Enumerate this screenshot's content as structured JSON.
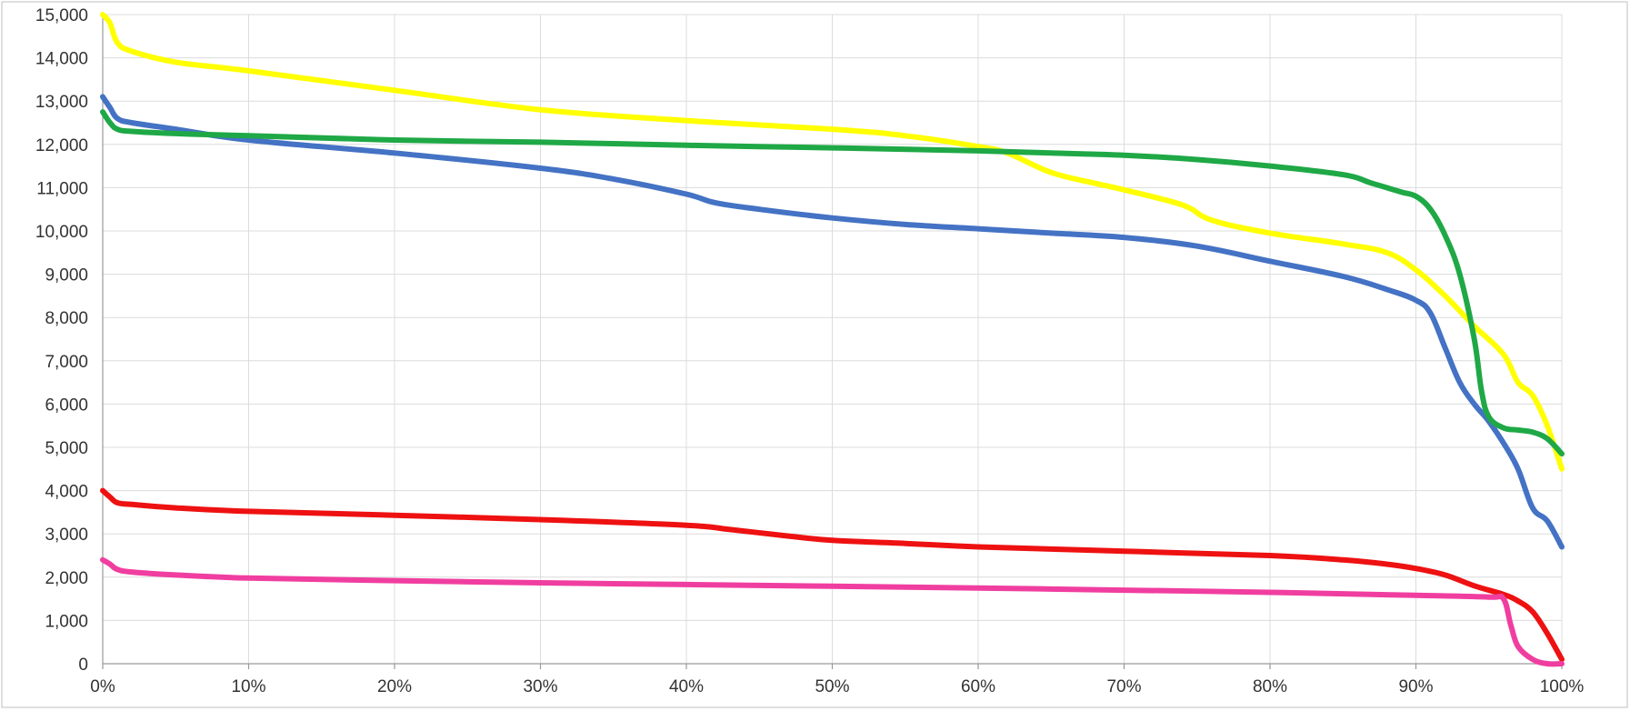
{
  "chart_data": {
    "type": "line",
    "title": "",
    "xlabel": "",
    "ylabel": "",
    "xlim": [
      0,
      100
    ],
    "ylim": [
      0,
      15000
    ],
    "grid": true,
    "x_ticks": [
      {
        "value": 0,
        "label": "0%"
      },
      {
        "value": 10,
        "label": "10%"
      },
      {
        "value": 20,
        "label": "20%"
      },
      {
        "value": 30,
        "label": "30%"
      },
      {
        "value": 40,
        "label": "40%"
      },
      {
        "value": 50,
        "label": "50%"
      },
      {
        "value": 60,
        "label": "60%"
      },
      {
        "value": 70,
        "label": "70%"
      },
      {
        "value": 80,
        "label": "80%"
      },
      {
        "value": 90,
        "label": "90%"
      },
      {
        "value": 100,
        "label": "100%"
      }
    ],
    "y_ticks": [
      {
        "value": 0,
        "label": "0"
      },
      {
        "value": 1000,
        "label": "1,000"
      },
      {
        "value": 2000,
        "label": "2,000"
      },
      {
        "value": 3000,
        "label": "3,000"
      },
      {
        "value": 4000,
        "label": "4,000"
      },
      {
        "value": 5000,
        "label": "5,000"
      },
      {
        "value": 6000,
        "label": "6,000"
      },
      {
        "value": 7000,
        "label": "7,000"
      },
      {
        "value": 8000,
        "label": "8,000"
      },
      {
        "value": 9000,
        "label": "9,000"
      },
      {
        "value": 10000,
        "label": "10,000"
      },
      {
        "value": 11000,
        "label": "11,000"
      },
      {
        "value": 12000,
        "label": "12,000"
      },
      {
        "value": 13000,
        "label": "13,000"
      },
      {
        "value": 14000,
        "label": "14,000"
      },
      {
        "value": 15000,
        "label": "15,000"
      }
    ],
    "series": [
      {
        "color": "#ffff00",
        "x": [
          0,
          0.5,
          1,
          2,
          5,
          10,
          20,
          30,
          40,
          50,
          55,
          60,
          62,
          65,
          68,
          70,
          74,
          76,
          80,
          85,
          88,
          90,
          92,
          94,
          96,
          97,
          98,
          99,
          100
        ],
        "y": [
          15000,
          14800,
          14350,
          14150,
          13900,
          13700,
          13250,
          12800,
          12550,
          12350,
          12200,
          11950,
          11800,
          11350,
          11100,
          10950,
          10600,
          10250,
          9950,
          9700,
          9500,
          9100,
          8500,
          7800,
          7150,
          6500,
          6200,
          5500,
          4500
        ]
      },
      {
        "color": "#4472c4",
        "x": [
          0,
          0.5,
          1,
          2,
          5,
          10,
          20,
          30,
          35,
          40,
          42,
          45,
          50,
          55,
          60,
          65,
          70,
          75,
          80,
          85,
          88,
          90,
          91,
          92,
          93,
          94,
          95,
          96,
          97,
          98,
          99,
          100
        ],
        "y": [
          13100,
          12850,
          12600,
          12500,
          12350,
          12100,
          11800,
          11450,
          11200,
          10850,
          10650,
          10500,
          10300,
          10150,
          10050,
          9950,
          9850,
          9650,
          9300,
          8950,
          8650,
          8400,
          8100,
          7300,
          6500,
          6000,
          5600,
          5100,
          4500,
          3600,
          3300,
          2700
        ]
      },
      {
        "color": "#1fa846",
        "x": [
          0,
          0.5,
          1,
          2,
          5,
          10,
          20,
          30,
          40,
          50,
          60,
          65,
          70,
          75,
          80,
          85,
          87,
          89,
          90,
          91,
          92,
          93,
          94,
          94.5,
          95,
          96,
          97,
          98,
          99,
          100
        ],
        "y": [
          12750,
          12500,
          12350,
          12300,
          12250,
          12200,
          12100,
          12050,
          11980,
          11920,
          11850,
          11800,
          11750,
          11650,
          11500,
          11300,
          11100,
          10900,
          10800,
          10500,
          9900,
          9000,
          7500,
          6300,
          5700,
          5450,
          5400,
          5350,
          5200,
          4850
        ]
      },
      {
        "color": "#ee1111",
        "x": [
          0,
          0.5,
          1,
          2,
          5,
          10,
          20,
          30,
          40,
          43,
          47,
          50,
          55,
          60,
          70,
          80,
          85,
          88,
          90,
          92,
          94,
          96,
          97,
          98,
          99,
          100
        ],
        "y": [
          4000,
          3850,
          3720,
          3680,
          3600,
          3520,
          3430,
          3330,
          3200,
          3100,
          2950,
          2850,
          2780,
          2700,
          2600,
          2500,
          2400,
          2300,
          2200,
          2050,
          1800,
          1600,
          1450,
          1200,
          700,
          100
        ]
      },
      {
        "color": "#f03ea0",
        "x": [
          0,
          0.5,
          1,
          2,
          5,
          10,
          20,
          30,
          40,
          50,
          60,
          70,
          80,
          90,
          95,
          96,
          96.5,
          97,
          98,
          99,
          100
        ],
        "y": [
          2400,
          2300,
          2180,
          2120,
          2050,
          1980,
          1920,
          1870,
          1830,
          1790,
          1750,
          1700,
          1650,
          1580,
          1540,
          1500,
          900,
          400,
          100,
          0,
          0
        ]
      }
    ]
  }
}
